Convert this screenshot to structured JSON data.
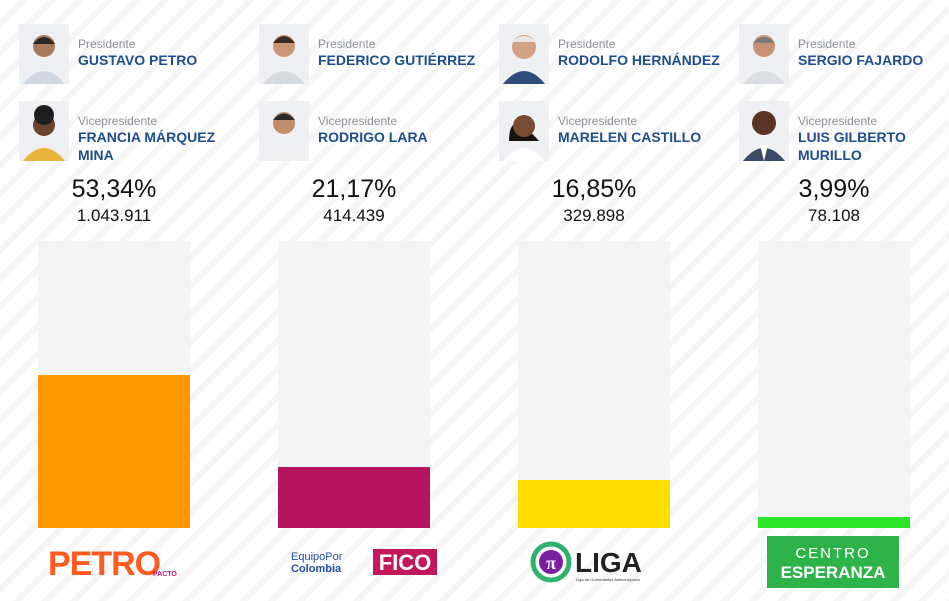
{
  "labels": {
    "president_role": "Presidente",
    "vice_role": "Vicepresidente"
  },
  "chart_data": {
    "type": "bar",
    "title": "",
    "xlabel": "",
    "ylabel": "",
    "ylim": [
      0,
      100
    ],
    "categories": [
      "PETRO",
      "FICO",
      "LIGA",
      "CENTRO ESPERANZA"
    ],
    "values": [
      53.34,
      21.17,
      16.85,
      3.99
    ],
    "value_labels": [
      "53,34%",
      "21,17%",
      "16,85%",
      "3,99%"
    ],
    "votes": [
      "1.043.911",
      "414.439",
      "329.898",
      "78.108"
    ],
    "colors": [
      "#ff9900",
      "#b5145f",
      "#ffdd00",
      "#2ee629"
    ]
  },
  "candidates": [
    {
      "president": "GUSTAVO PETRO",
      "vice": "FRANCIA MÁRQUEZ MINA",
      "logo": {
        "text": "PETRO",
        "small": "PACTO",
        "icon": "petro-logo"
      }
    },
    {
      "president": "FEDERICO GUTIÉRREZ",
      "vice": "RODRIGO LARA",
      "logo": {
        "text": "FICO",
        "line1": "EquipoPor",
        "line2": "Colombia",
        "icon": "fico-logo"
      }
    },
    {
      "president": "RODOLFO HERNÁNDEZ",
      "vice": "MARELEN CASTILLO",
      "logo": {
        "text": "LIGA",
        "symbol": "π",
        "small": "Liga de Gobernantes Anticorrupción",
        "icon": "liga-logo"
      }
    },
    {
      "president": "SERGIO FAJARDO",
      "vice": "LUIS GILBERTO MURILLO",
      "logo": {
        "line1": "CENTRO",
        "line2": "ESPERANZA",
        "icon": "centro-esperanza-logo"
      }
    }
  ]
}
